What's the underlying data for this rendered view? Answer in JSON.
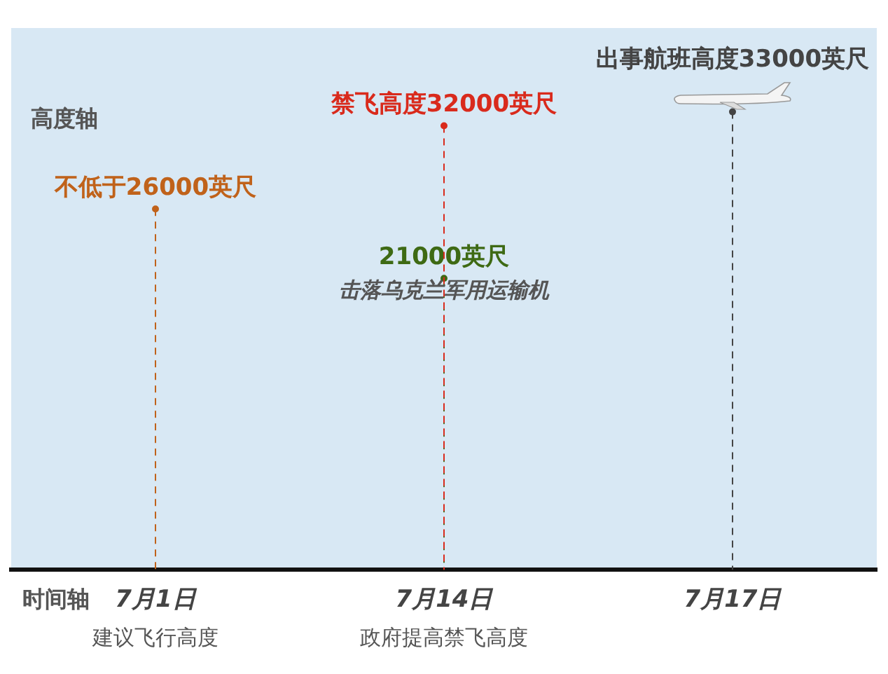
{
  "chart_data": {
    "type": "lollipop",
    "xlabel": "时间轴",
    "ylabel": "高度轴",
    "categories": [
      "7月1日",
      "7月14日",
      "7月17日"
    ],
    "series": [
      {
        "x": [
          "7月1日",
          "7月14日",
          "7月14日",
          "7月17日"
        ],
        "values": [
          26000,
          21000,
          32000,
          33000
        ],
        "colors": [
          "#c0621a",
          "#3e6a14",
          "#d92a1c",
          "#444444"
        ],
        "value_labels": [
          "不低于26000英尺",
          "21000英尺",
          "禁飞高度32000英尺",
          "出事航班高度33000英尺"
        ]
      }
    ],
    "annotations": [
      {
        "text": "击落乌克兰军用运输机",
        "x": "7月14日",
        "y": 21000
      },
      "建议飞行高度",
      "政府提高禁飞高度"
    ],
    "marker": "circle",
    "line_style": "dashed",
    "tick_labels": "x"
  }
}
